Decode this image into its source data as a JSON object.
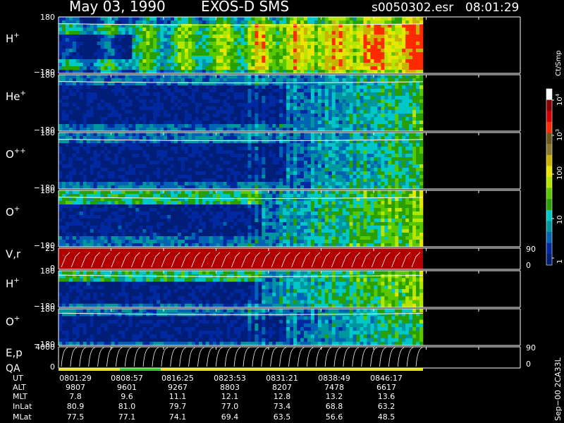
{
  "header": {
    "date": "May 03, 1990",
    "instrument": "EXOS-D SMS",
    "file": "s0050302.esr",
    "time": "08:01:29"
  },
  "colorbar": {
    "unit": "Ct/Smp",
    "ticks": [
      "10^4",
      "10^3",
      "100",
      "10",
      "1"
    ],
    "colors": [
      "#ffffff",
      "#8b0000",
      "#d40000",
      "#ff2a00",
      "#6b5a1e",
      "#8c7a2a",
      "#c8b400",
      "#e6e600",
      "#b4e600",
      "#5ac800",
      "#2aa000",
      "#00c8c8",
      "#0096a0",
      "#0064b4",
      "#0028a0",
      "#001e78"
    ]
  },
  "panels": [
    {
      "label": "H",
      "sup": "+",
      "ytop": "180",
      "ybot": "−180",
      "style": "heat-rich"
    },
    {
      "label": "He",
      "sup": "+",
      "ytop": "180",
      "ybot": "−180",
      "style": "heat-sparse"
    },
    {
      "label": "O",
      "sup": "++",
      "ytop": "180",
      "ybot": "−180",
      "style": "heat-sparse"
    },
    {
      "label": "O",
      "sup": "+",
      "ytop": "180",
      "ybot": "−180",
      "style": "heat-mid"
    },
    {
      "label": "V,r",
      "sup": "",
      "ytop": "25",
      "ybot": "0",
      "style": "line",
      "rtop": "90",
      "rbot": "0"
    },
    {
      "label": "H",
      "sup": "+",
      "ytop": "180",
      "ybot": "−180",
      "style": "heat-mid"
    },
    {
      "label": "O",
      "sup": "+",
      "ytop": "180",
      "ybot": "−180",
      "style": "heat-sparse"
    },
    {
      "label": "E,p",
      "sup": "",
      "label2": "QA",
      "ytop": "4000",
      "ybot": "0",
      "style": "energy",
      "rtop": "90",
      "rbot": "0"
    }
  ],
  "chart_data": {
    "type": "heatmap",
    "title": "May 03, 1990   EXOS-D SMS",
    "ylabel": "Ct/Smp",
    "panels": [
      "H+",
      "He+",
      "O++",
      "O+",
      "V,r",
      "H+",
      "O+",
      "E,p"
    ],
    "ylim_pitch": [
      -180,
      180
    ],
    "ylim_velocity": [
      0,
      25
    ],
    "ylim_energy": [
      0,
      4000
    ],
    "color_scale": "log",
    "color_range": [
      1,
      10000
    ]
  },
  "table": {
    "rows": [
      {
        "label": "UT",
        "values": [
          "0801:29",
          "0808:57",
          "0816:25",
          "0823:53",
          "0831:21",
          "0838:49",
          "0846:17"
        ]
      },
      {
        "label": "ALT",
        "values": [
          "9807",
          "9601",
          "9267",
          "8803",
          "8207",
          "7478",
          "6617"
        ]
      },
      {
        "label": "MLT",
        "values": [
          "7.8",
          "9.6",
          "11.1",
          "12.1",
          "12.8",
          "13.2",
          "13.6"
        ]
      },
      {
        "label": "InLat",
        "values": [
          "80.9",
          "81.0",
          "79.7",
          "77.0",
          "73.4",
          "68.8",
          "63.2"
        ]
      },
      {
        "label": "MLat",
        "values": [
          "77.5",
          "77.1",
          "74.1",
          "69.4",
          "63.5",
          "56.6",
          "48.5"
        ]
      }
    ]
  },
  "footer_note": "Sep−00  2CA33L"
}
